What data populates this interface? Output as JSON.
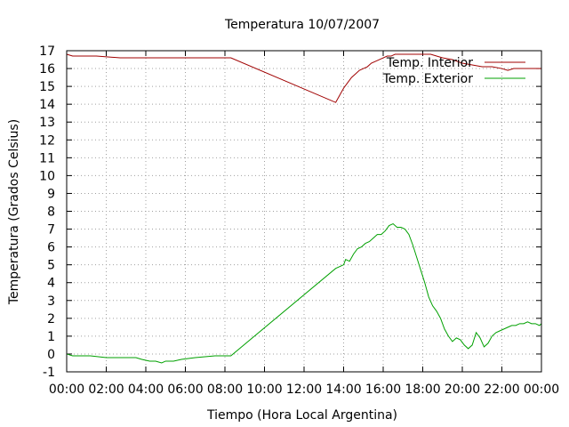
{
  "chart_data": {
    "type": "line",
    "title": "Temperatura 10/07/2007",
    "xlabel": "Tiempo (Hora Local Argentina)",
    "ylabel": "Temperatura (Grados Celsius)",
    "xlim": [
      0,
      24
    ],
    "ylim": [
      -1,
      17
    ],
    "grid": true,
    "legend_position": "top-right",
    "x_ticks": [
      0,
      2,
      4,
      6,
      8,
      10,
      12,
      14,
      16,
      18,
      20,
      22,
      24
    ],
    "x_tick_labels": [
      "00:00",
      "02:00",
      "04:00",
      "06:00",
      "08:00",
      "10:00",
      "12:00",
      "14:00",
      "16:00",
      "18:00",
      "20:00",
      "22:00",
      "00:00"
    ],
    "y_ticks": [
      -1,
      0,
      1,
      2,
      3,
      4,
      5,
      6,
      7,
      8,
      9,
      10,
      11,
      12,
      13,
      14,
      15,
      16,
      17
    ],
    "y_tick_labels": [
      "-1",
      "0",
      "1",
      "2",
      "3",
      "4",
      "5",
      "6",
      "7",
      "8",
      "9",
      "10",
      "11",
      "12",
      "13",
      "14",
      "15",
      "16",
      "17"
    ],
    "series": [
      {
        "name": "Temp. Interior",
        "color": "#a00000",
        "step": true,
        "x": [
          0,
          0.3,
          1.5,
          2.7,
          3.5,
          4.5,
          5.5,
          6.5,
          7.5,
          8.3,
          13.6,
          13.8,
          14.0,
          14.2,
          14.4,
          14.6,
          14.8,
          15.0,
          15.2,
          15.4,
          15.6,
          15.8,
          16.0,
          16.2,
          16.4,
          16.6,
          17.0,
          17.4,
          17.8,
          18.4,
          19.0,
          19.5,
          20.0,
          20.5,
          21.0,
          21.5,
          22.0,
          22.3,
          22.6,
          23.0,
          24.0
        ],
        "y": [
          16.8,
          16.7,
          16.7,
          16.6,
          16.6,
          16.6,
          16.6,
          16.6,
          16.6,
          16.6,
          14.1,
          14.5,
          14.9,
          15.2,
          15.5,
          15.7,
          15.9,
          16.0,
          16.1,
          16.3,
          16.4,
          16.5,
          16.6,
          16.7,
          16.7,
          16.8,
          16.8,
          16.8,
          16.8,
          16.8,
          16.6,
          16.5,
          16.3,
          16.2,
          16.1,
          16.1,
          16.0,
          15.9,
          16.0,
          16.0,
          16.0
        ]
      },
      {
        "name": "Temp. Exterior",
        "color": "#00a000",
        "step": true,
        "x": [
          0,
          0.3,
          1.2,
          2.0,
          3.0,
          3.5,
          3.8,
          4.2,
          4.5,
          4.8,
          5.0,
          5.4,
          5.8,
          6.5,
          7.5,
          8.0,
          8.3,
          13.6,
          13.8,
          14.0,
          14.1,
          14.3,
          14.5,
          14.7,
          14.9,
          15.1,
          15.3,
          15.5,
          15.7,
          15.9,
          16.1,
          16.3,
          16.5,
          16.7,
          16.9,
          17.1,
          17.3,
          17.5,
          17.7,
          17.9,
          18.1,
          18.3,
          18.5,
          18.7,
          18.9,
          19.1,
          19.3,
          19.5,
          19.7,
          19.9,
          20.1,
          20.3,
          20.5,
          20.7,
          20.9,
          21.1,
          21.3,
          21.5,
          21.7,
          21.9,
          22.1,
          22.3,
          22.5,
          22.7,
          22.9,
          23.1,
          23.3,
          23.5,
          23.7,
          23.9,
          24.0
        ],
        "y": [
          0.0,
          -0.1,
          -0.1,
          -0.2,
          -0.2,
          -0.2,
          -0.3,
          -0.4,
          -0.4,
          -0.5,
          -0.4,
          -0.4,
          -0.3,
          -0.2,
          -0.1,
          -0.1,
          -0.1,
          4.8,
          4.9,
          5.0,
          5.3,
          5.2,
          5.6,
          5.9,
          6.0,
          6.2,
          6.3,
          6.5,
          6.7,
          6.7,
          6.9,
          7.2,
          7.3,
          7.1,
          7.1,
          7.0,
          6.7,
          6.1,
          5.4,
          4.7,
          4.0,
          3.2,
          2.7,
          2.4,
          2.0,
          1.4,
          1.0,
          0.7,
          0.9,
          0.8,
          0.5,
          0.3,
          0.5,
          1.2,
          0.9,
          0.4,
          0.6,
          1.0,
          1.2,
          1.3,
          1.4,
          1.5,
          1.6,
          1.6,
          1.7,
          1.7,
          1.8,
          1.7,
          1.7,
          1.6,
          1.7
        ]
      }
    ]
  }
}
